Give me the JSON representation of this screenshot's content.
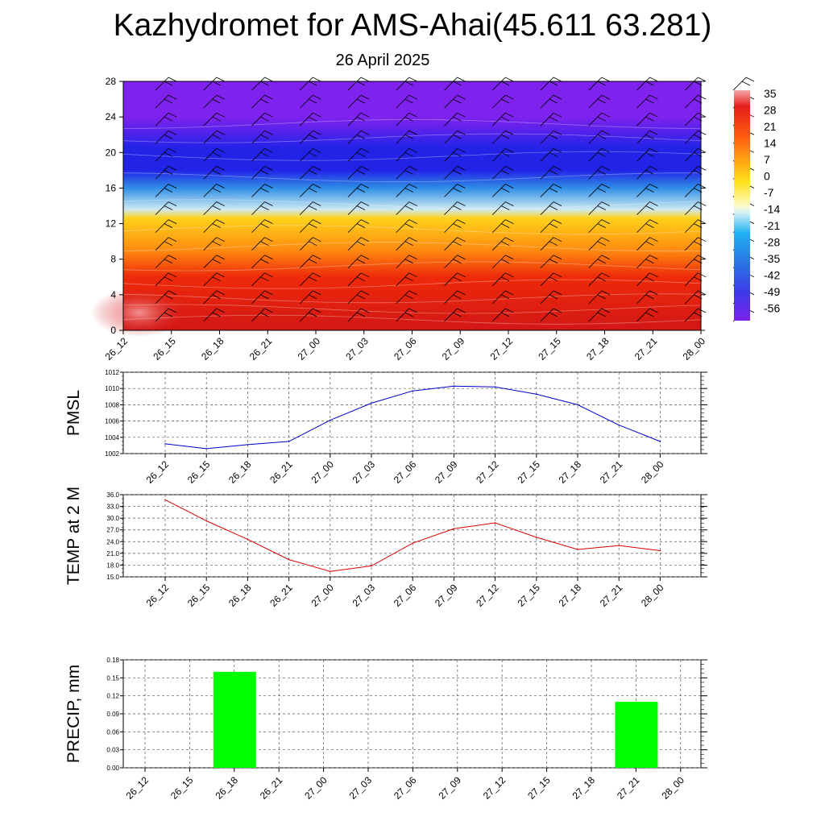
{
  "title": "Kazhydromet for AMS-Ahai(45.611 63.281)",
  "subtitle": "26 April 2025",
  "chart_data": [
    {
      "type": "heatmap",
      "name": "upper-air-cross-section",
      "ylim": [
        0,
        28
      ],
      "yticks": [
        0,
        4,
        8,
        12,
        16,
        20,
        24,
        28
      ],
      "x_labels": [
        "26_12",
        "26_15",
        "26_18",
        "26_21",
        "27_00",
        "27_03",
        "27_06",
        "27_09",
        "27_12",
        "27_15",
        "27_18",
        "27_21",
        "28_00"
      ],
      "colorbar_labels": [
        "35",
        "28",
        "21",
        "14",
        "7",
        "0",
        "-7",
        "-14",
        "-21",
        "-28",
        "-35",
        "-42",
        "-49",
        "-56"
      ],
      "colors": {
        "top": "#7f22ee",
        "band20": "#2323e8",
        "band16": "#2f8fe6",
        "band13": "#cfe9f2",
        "band12": "#ffd21a",
        "band9": "#ff8a10",
        "band6": "#ee2a0a",
        "bottom": "#d31616"
      }
    },
    {
      "type": "line",
      "name": "pmsl",
      "ylabel": "PMSL",
      "ylim": [
        1002,
        1012
      ],
      "yticks": [
        "1002",
        "1004",
        "1006",
        "1008",
        "1010",
        "1012"
      ],
      "x": [
        "26_12",
        "26_15",
        "26_18",
        "26_21",
        "27_00",
        "27_03",
        "27_06",
        "27_09",
        "27_12",
        "27_15",
        "27_18",
        "27_21",
        "28_00"
      ],
      "values": [
        1003.2,
        1002.6,
        1003.1,
        1003.5,
        1006.1,
        1008.2,
        1009.7,
        1010.3,
        1010.2,
        1009.3,
        1008.0,
        1005.5,
        1003.5
      ],
      "color": "#0000cc"
    },
    {
      "type": "line",
      "name": "temp-2m",
      "ylabel": "TEMP at 2 M",
      "ylim": [
        15,
        36
      ],
      "yticks": [
        "15.0",
        "18.0",
        "21.0",
        "24.0",
        "27.0",
        "30.0",
        "33.0",
        "36.0"
      ],
      "x": [
        "26_12",
        "26_15",
        "26_18",
        "26_21",
        "27_00",
        "27_03",
        "27_06",
        "27_09",
        "27_12",
        "27_15",
        "27_18",
        "27_21",
        "28_00"
      ],
      "values": [
        34.7,
        29.3,
        24.6,
        19.4,
        16.4,
        17.8,
        23.6,
        27.3,
        28.8,
        25.1,
        22.0,
        23.0,
        21.7
      ],
      "color": "#dd0000"
    },
    {
      "type": "bar",
      "name": "precip",
      "ylabel": "PRECIP, mm",
      "ylim": [
        0,
        0.18
      ],
      "yticks": [
        "0.00",
        "0.03",
        "0.06",
        "0.09",
        "0.12",
        "0.15",
        "0.18"
      ],
      "categories": [
        "26_12",
        "26_15",
        "26_18",
        "26_21",
        "27_00",
        "27_03",
        "27_06",
        "27_09",
        "27_12",
        "27_15",
        "27_18",
        "27_21",
        "28_00"
      ],
      "values": [
        0,
        0,
        0.16,
        0,
        0,
        0,
        0,
        0,
        0,
        0,
        0,
        0.11,
        0
      ],
      "color": "#00ff00"
    }
  ]
}
